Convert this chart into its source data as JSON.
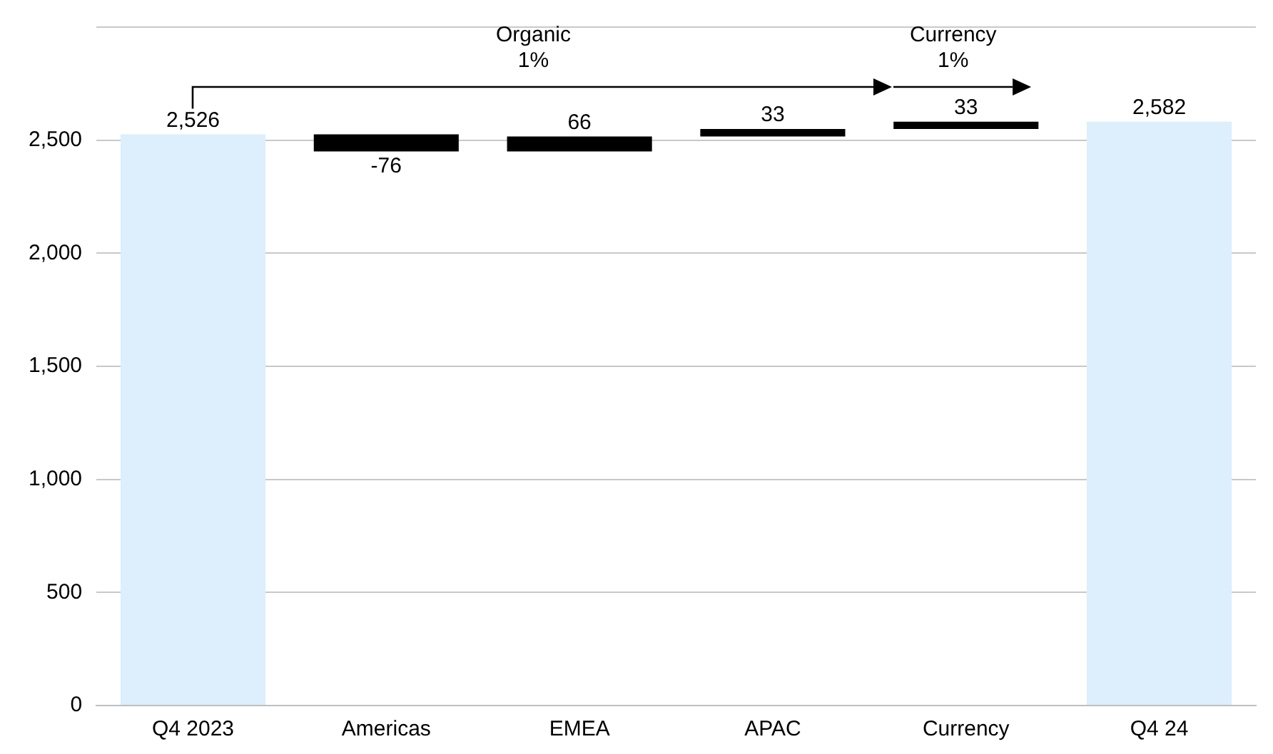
{
  "chart_data": {
    "type": "bar",
    "categories": [
      "Q4 2023",
      "Americas",
      "EMEA",
      "APAC",
      "Currency",
      "Q4 24"
    ],
    "values": [
      2526,
      -76,
      66,
      33,
      33,
      2582
    ],
    "base": [
      0,
      2526,
      2450,
      2516,
      2549,
      0
    ],
    "colors": [
      "#ddeefc",
      "#000000",
      "#000000",
      "#000000",
      "#000000",
      "#ddeefc"
    ],
    "value_labels": [
      "2,526",
      "-76",
      "66",
      "33",
      "33",
      "2,582"
    ],
    "ylim": [
      0,
      3000
    ],
    "yticks": [
      0,
      {
        "value": 500,
        "label": "500"
      },
      {
        "value": 1000,
        "label": "1,000"
      },
      {
        "value": 1500,
        "label": "1,500"
      },
      {
        "value": 2000,
        "label": "2,000"
      },
      {
        "value": 2500,
        "label": "2,500"
      },
      {
        "value": 3000,
        "label": null
      }
    ],
    "grid": "y",
    "legend": false,
    "annotations": [
      "Organic\n1%",
      "Currency\n1%"
    ]
  }
}
